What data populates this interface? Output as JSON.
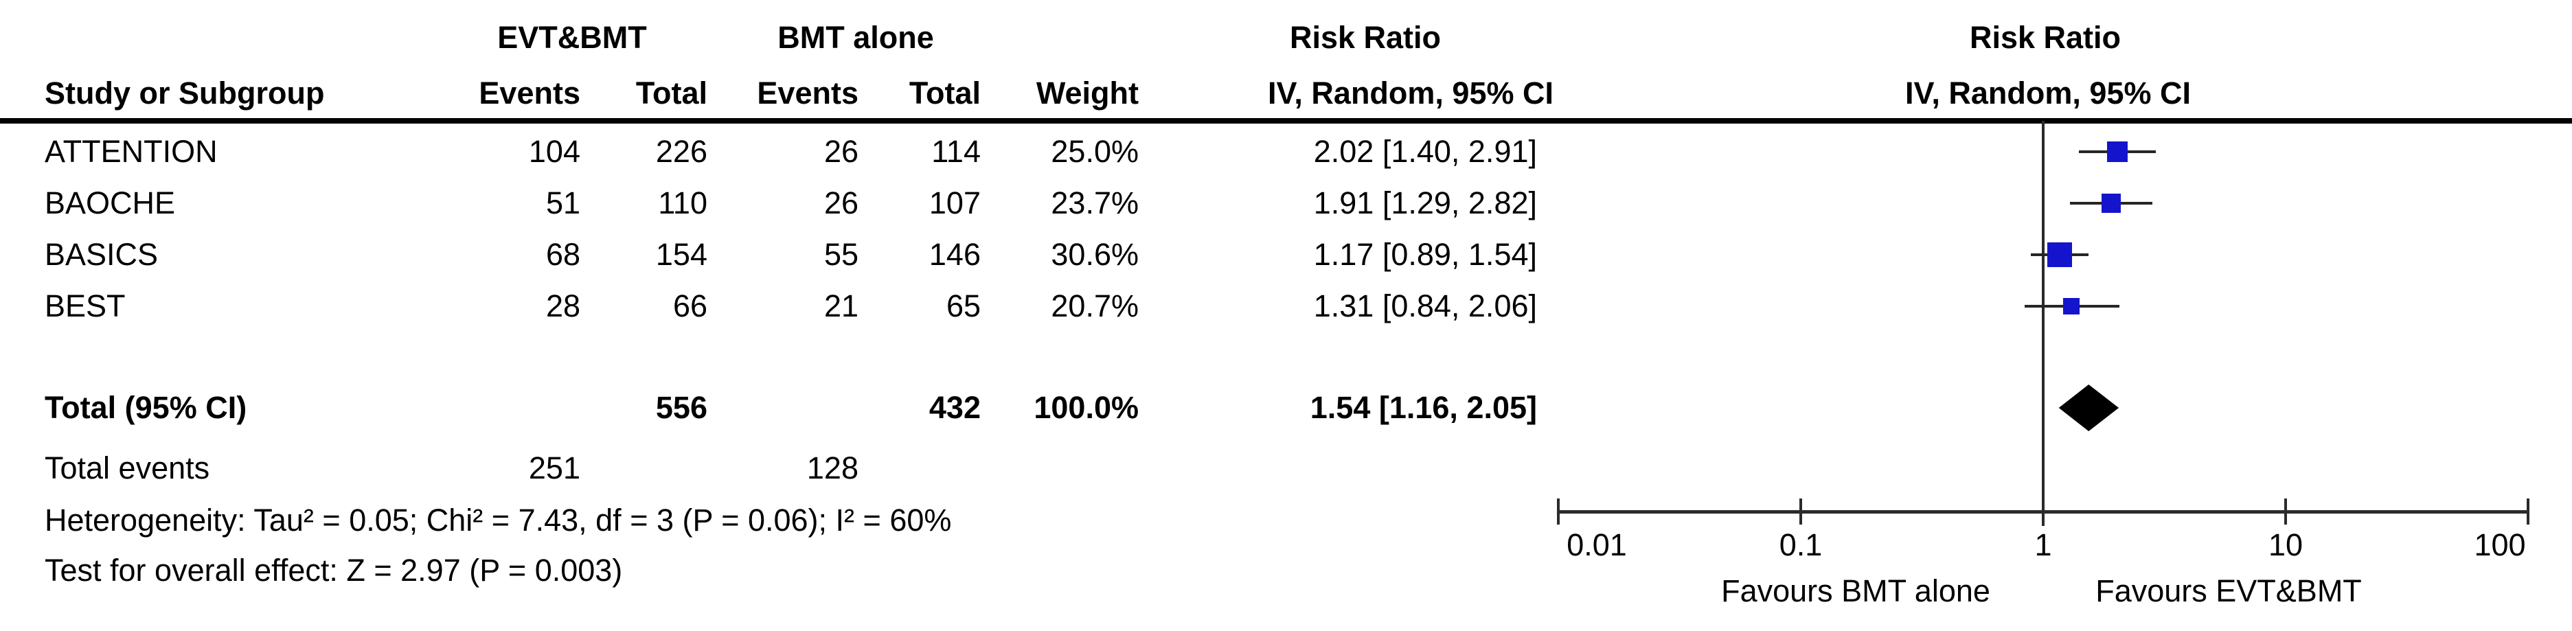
{
  "table": {
    "group1_label": "EVT&BMT",
    "group2_label": "BMT alone",
    "effect_header_left": "Risk Ratio",
    "effect_method_left": "IV, Random, 95% CI",
    "effect_header_right": "Risk Ratio",
    "effect_method_right": "IV, Random, 95% CI",
    "columns": {
      "study": "Study or Subgroup",
      "events1": "Events",
      "total1": "Total",
      "events2": "Events",
      "total2": "Total",
      "weight": "Weight"
    },
    "rows": [
      {
        "study": "ATTENTION",
        "events1": "104",
        "total1": "226",
        "events2": "26",
        "total2": "114",
        "weight": "25.0%",
        "ci_text": "2.02 [1.40, 2.91]"
      },
      {
        "study": "BAOCHE",
        "events1": "51",
        "total1": "110",
        "events2": "26",
        "total2": "107",
        "weight": "23.7%",
        "ci_text": "1.91 [1.29, 2.82]"
      },
      {
        "study": "BASICS",
        "events1": "68",
        "total1": "154",
        "events2": "55",
        "total2": "146",
        "weight": "30.6%",
        "ci_text": "1.17 [0.89, 1.54]"
      },
      {
        "study": "BEST",
        "events1": "28",
        "total1": "66",
        "events2": "21",
        "total2": "65",
        "weight": "20.7%",
        "ci_text": "1.31 [0.84, 2.06]"
      }
    ],
    "total_row": {
      "label": "Total (95% CI)",
      "total1": "556",
      "total2": "432",
      "weight": "100.0%",
      "ci_text": "1.54 [1.16, 2.05]"
    },
    "total_events_row": {
      "label": "Total events",
      "events1": "251",
      "events2": "128"
    },
    "heterogeneity_text": "Heterogeneity: Tau² = 0.05; Chi² = 7.43, df = 3 (P = 0.06); I² = 60%",
    "overall_effect_text": "Test for overall effect: Z = 2.97 (P = 0.003)"
  },
  "chart_data": {
    "type": "scatter",
    "subtype": "forest-plot",
    "x_scale": "log10",
    "xlim": [
      0.01,
      100
    ],
    "null_line": 1,
    "axis_ticks": [
      0.01,
      0.1,
      1,
      10,
      100
    ],
    "tick_labels": [
      "0.01",
      "0.1",
      "1",
      "10",
      "100"
    ],
    "series": [
      {
        "name": "ATTENTION",
        "rr": 2.02,
        "ci_low": 1.4,
        "ci_high": 2.91,
        "weight_pct": 25.0
      },
      {
        "name": "BAOCHE",
        "rr": 1.91,
        "ci_low": 1.29,
        "ci_high": 2.82,
        "weight_pct": 23.7
      },
      {
        "name": "BASICS",
        "rr": 1.17,
        "ci_low": 0.89,
        "ci_high": 1.54,
        "weight_pct": 30.6
      },
      {
        "name": "BEST",
        "rr": 1.31,
        "ci_low": 0.84,
        "ci_high": 2.06,
        "weight_pct": 20.7
      }
    ],
    "total_diamond": {
      "rr": 1.54,
      "ci_low": 1.16,
      "ci_high": 2.05
    },
    "favours_left_label": "Favours BMT alone",
    "favours_right_label": "Favours EVT&BMT",
    "marker_color": "#1414CC",
    "diamond_color": "#000000",
    "line_color": "#262626"
  }
}
